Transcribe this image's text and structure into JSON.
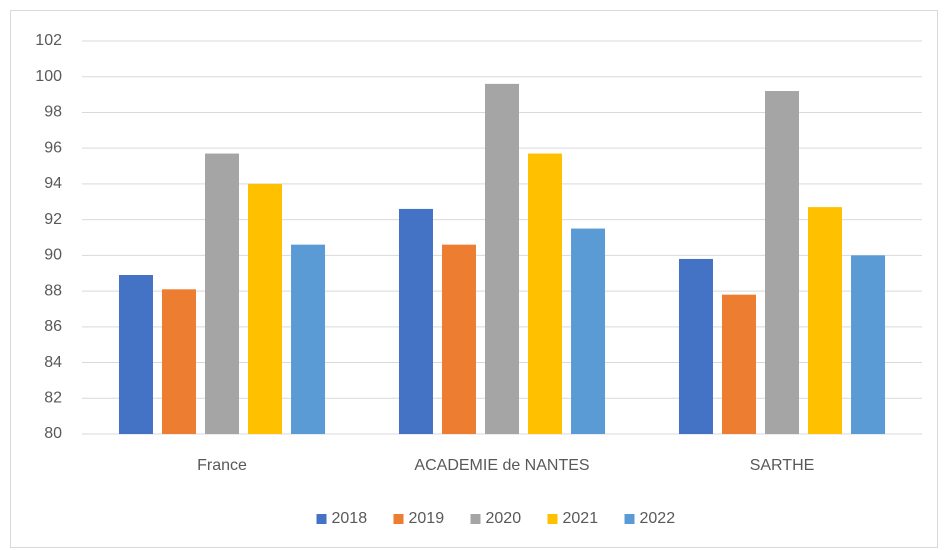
{
  "chart_data": {
    "type": "bar",
    "categories": [
      "France",
      "ACADEMIE de NANTES",
      "SARTHE"
    ],
    "series": [
      {
        "name": "2018",
        "color": "#4472c4",
        "values": [
          88.9,
          92.6,
          89.8
        ]
      },
      {
        "name": "2019",
        "color": "#ed7d31",
        "values": [
          88.1,
          90.6,
          87.8
        ]
      },
      {
        "name": "2020",
        "color": "#a5a5a5",
        "values": [
          95.7,
          99.6,
          99.2
        ]
      },
      {
        "name": "2021",
        "color": "#ffc000",
        "values": [
          94.0,
          95.7,
          92.7
        ]
      },
      {
        "name": "2022",
        "color": "#5b9bd5",
        "values": [
          90.6,
          91.5,
          90.0
        ]
      }
    ],
    "ylim": [
      80,
      102
    ],
    "yticks": [
      80,
      82,
      84,
      86,
      88,
      90,
      92,
      94,
      96,
      98,
      100,
      102
    ],
    "grid": true,
    "legend": "bottom"
  }
}
